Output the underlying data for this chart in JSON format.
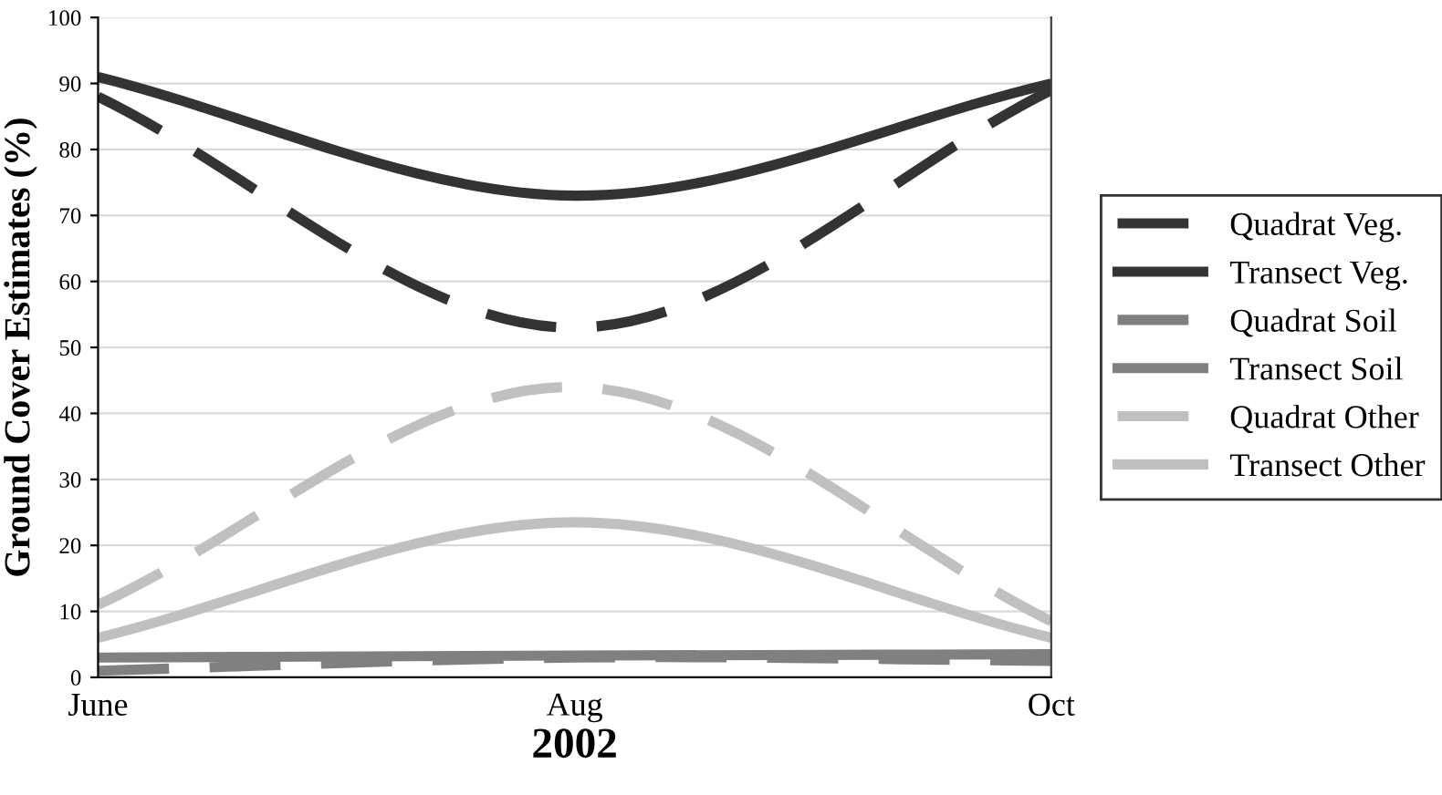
{
  "chart_data": {
    "type": "line",
    "xlabel": "2002",
    "ylabel": "Ground Cover Estimates (%)",
    "categories": [
      "June",
      "Aug",
      "Oct"
    ],
    "series": [
      {
        "name": "Quadrat Veg.",
        "color": "#333333",
        "line_style": "dashed",
        "values": [
          88,
          53,
          89
        ]
      },
      {
        "name": "Transect Veg.",
        "color": "#333333",
        "line_style": "solid",
        "values": [
          91,
          73,
          90
        ]
      },
      {
        "name": "Quadrat Soil",
        "color": "#808080",
        "line_style": "dashed",
        "values": [
          1,
          3,
          2.5
        ]
      },
      {
        "name": "Transect Soil",
        "color": "#808080",
        "line_style": "solid",
        "values": [
          3,
          3.3,
          3.5
        ]
      },
      {
        "name": "Quadrat Other",
        "color": "#c0c0c0",
        "line_style": "dashed",
        "values": [
          11,
          44,
          8.5
        ]
      },
      {
        "name": "Transect Other",
        "color": "#c0c0c0",
        "line_style": "solid",
        "values": [
          6,
          23.5,
          6
        ]
      }
    ],
    "ylim": [
      0,
      100
    ],
    "yticks": [
      0,
      10,
      20,
      30,
      40,
      50,
      60,
      70,
      80,
      90,
      100
    ],
    "grid": "y",
    "legend": "right",
    "marker": "none"
  }
}
